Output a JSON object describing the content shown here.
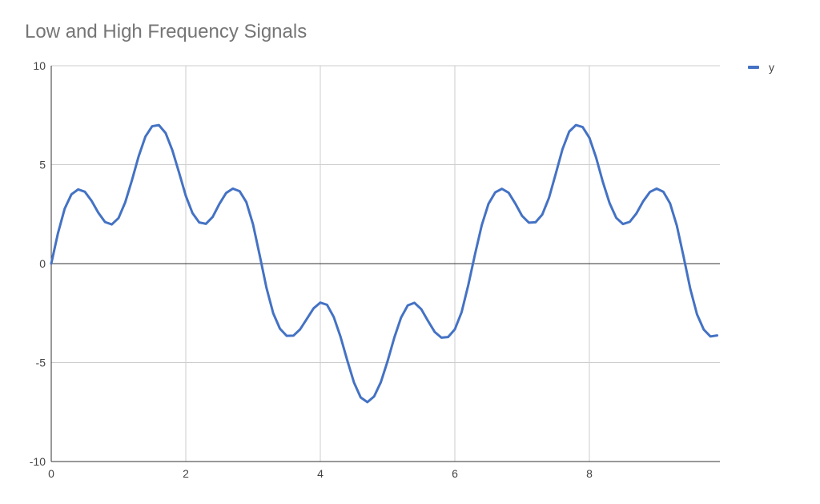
{
  "chart_data": {
    "type": "line",
    "title": "Low and High Frequency Signals",
    "xlabel": "",
    "ylabel": "",
    "xlim": [
      0,
      9.9
    ],
    "ylim": [
      -10,
      10
    ],
    "x_ticks": [
      "0",
      "2",
      "4",
      "6",
      "8"
    ],
    "y_ticks": [
      "10",
      "5",
      "0",
      "-5",
      "-10"
    ],
    "grid": true,
    "legend": {
      "position": "right"
    },
    "series": [
      {
        "name": "y",
        "color": "#4472c4",
        "x": [
          0,
          0.1,
          0.2,
          0.3,
          0.4,
          0.5,
          0.6,
          0.7,
          0.8,
          0.9,
          1.0,
          1.1,
          1.2,
          1.3,
          1.4,
          1.5,
          1.6,
          1.7,
          1.8,
          1.9,
          2.0,
          2.1,
          2.2,
          2.3,
          2.4,
          2.5,
          2.6,
          2.7,
          2.8,
          2.9,
          3.0,
          3.1,
          3.2,
          3.3,
          3.4,
          3.5,
          3.6,
          3.7,
          3.8,
          3.9,
          4.0,
          4.1,
          4.2,
          4.3,
          4.4,
          4.5,
          4.6,
          4.7,
          4.8,
          4.9,
          5.0,
          5.1,
          5.2,
          5.3,
          5.4,
          5.5,
          5.6,
          5.7,
          5.8,
          5.9,
          6.0,
          6.1,
          6.2,
          6.3,
          6.4,
          6.5,
          6.6,
          6.7,
          6.8,
          6.9,
          7.0,
          7.1,
          7.2,
          7.3,
          7.4,
          7.5,
          7.6,
          7.7,
          7.8,
          7.9,
          8.0,
          8.1,
          8.2,
          8.3,
          8.4,
          8.5,
          8.6,
          8.7,
          8.8,
          8.9,
          9.0,
          9.1,
          9.2,
          9.3,
          9.4,
          9.5,
          9.6,
          9.7,
          9.8,
          9.9
        ],
        "values": [
          0,
          1.54,
          2.78,
          3.5,
          3.75,
          3.63,
          3.17,
          2.57,
          2.1,
          1.98,
          2.3,
          3.1,
          4.22,
          5.43,
          6.42,
          6.94,
          7.0,
          6.6,
          5.73,
          4.6,
          3.43,
          2.55,
          2.08,
          2.01,
          2.36,
          3.02,
          3.57,
          3.79,
          3.66,
          3.11,
          1.98,
          0.4,
          -1.23,
          -2.51,
          -3.29,
          -3.65,
          -3.64,
          -3.32,
          -2.79,
          -2.26,
          -1.97,
          -2.08,
          -2.7,
          -3.69,
          -4.88,
          -6.0,
          -6.76,
          -7.0,
          -6.71,
          -5.99,
          -4.93,
          -3.74,
          -2.73,
          -2.11,
          -1.98,
          -2.3,
          -2.89,
          -3.45,
          -3.74,
          -3.71,
          -3.32,
          -2.46,
          -1.08,
          0.48,
          1.94,
          3.02,
          3.6,
          3.78,
          3.58,
          3.03,
          2.41,
          2.07,
          2.09,
          2.48,
          3.33,
          4.54,
          5.78,
          6.67,
          7.0,
          6.9,
          6.36,
          5.36,
          4.13,
          3.06,
          2.31,
          2.0,
          2.11,
          2.54,
          3.15,
          3.62,
          3.79,
          3.63,
          3.04,
          1.92,
          0.36,
          -1.27,
          -2.56,
          -3.33,
          -3.68,
          -3.63
        ]
      }
    ]
  }
}
